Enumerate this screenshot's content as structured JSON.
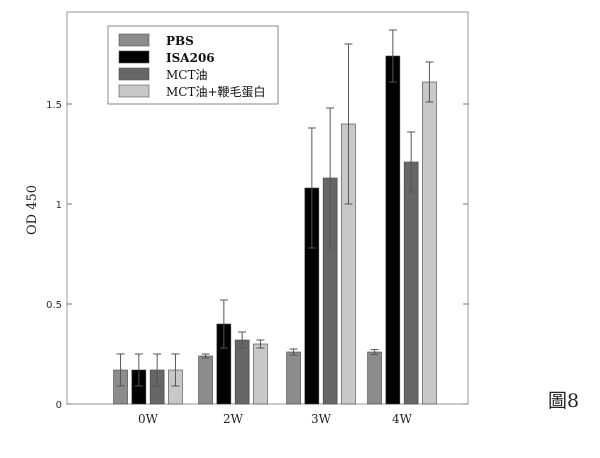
{
  "figure_label": "圖8",
  "chart_data": {
    "type": "bar",
    "ylabel": "OD 450",
    "xlabel": "",
    "title": "",
    "ylim": [
      0,
      1.96
    ],
    "yticks": [
      0,
      0.5,
      1,
      1.5
    ],
    "ytick_labels": [
      "0",
      "0.5",
      "1",
      "1.5"
    ],
    "grid": false,
    "legend_position": "top-left",
    "categories": [
      "0W",
      "2W",
      "3W",
      "4W"
    ],
    "series": [
      {
        "name": "PBS",
        "color": "#8c8c8c",
        "values": [
          0.17,
          0.24,
          0.26,
          0.26
        ],
        "errors": [
          0.08,
          0.01,
          0.015,
          0.012
        ]
      },
      {
        "name": "ISA206",
        "color": "#000000",
        "values": [
          0.17,
          0.4,
          1.08,
          1.74
        ],
        "errors": [
          0.08,
          0.12,
          0.3,
          0.13
        ]
      },
      {
        "name": "MCT油",
        "color": "#666666",
        "values": [
          0.17,
          0.32,
          1.13,
          1.21
        ],
        "errors": [
          0.08,
          0.04,
          0.35,
          0.15
        ]
      },
      {
        "name": "MCT油+鞭毛蛋白",
        "color": "#c8c8c8",
        "values": [
          0.17,
          0.3,
          1.4,
          1.61
        ],
        "errors": [
          0.08,
          0.02,
          0.4,
          0.1
        ]
      }
    ]
  }
}
